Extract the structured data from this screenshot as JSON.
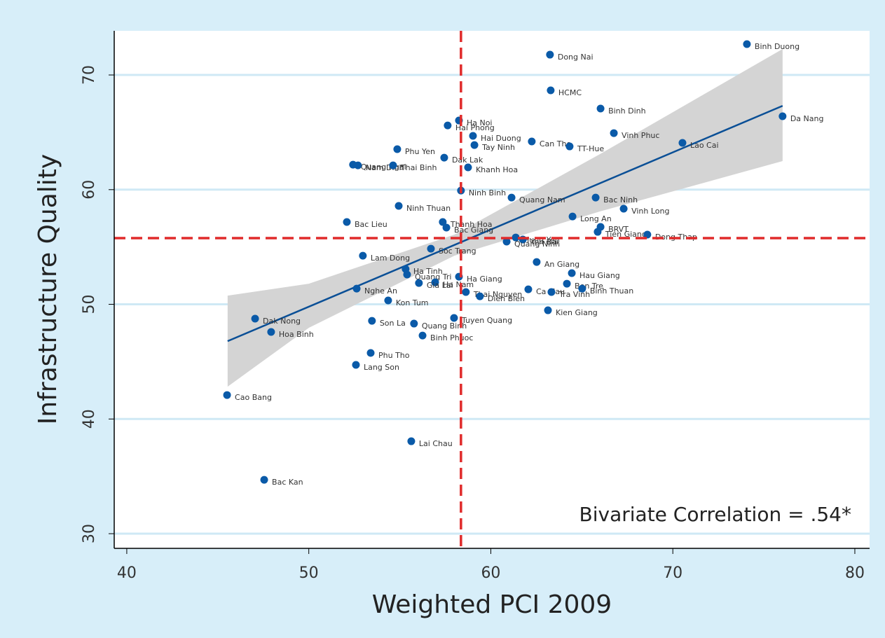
{
  "chart_data": {
    "type": "scatter",
    "xlabel": "Weighted PCI 2009",
    "ylabel": "Infrastructure Quality",
    "annotation": "Bivariate Correlation = .54*",
    "xlim": [
      39.31,
      80.81
    ],
    "ylim": [
      28.72,
      73.85
    ],
    "xticks": [
      40,
      50,
      60,
      70,
      80
    ],
    "yticks": [
      30,
      40,
      50,
      60,
      70
    ],
    "grid": true,
    "color": "#0a5aa8",
    "vline": 58.36,
    "hline": 55.77,
    "ref_color": "#e02b2b",
    "fit": {
      "x": [
        45.54,
        76.03
      ],
      "y": [
        46.79,
        67.31
      ],
      "color": "#0a4f96"
    },
    "ci": {
      "x": [
        45.54,
        50,
        58,
        66,
        76.03
      ],
      "lower": [
        42.82,
        47.95,
        54.24,
        58.1,
        62.49
      ],
      "upper": [
        50.76,
        51.8,
        56.08,
        63.1,
        72.26
      ],
      "color": "#d4d4d4"
    },
    "labels": [
      "Binh Duong",
      "Dong Nai",
      "HCMC",
      "Binh Dinh",
      "Da Nang",
      "Ha Noi",
      "Hai Phong",
      "Hai Duong",
      "Vinh Phuc",
      "Can Tho",
      "Lao Cai",
      "Tay Ninh",
      "TT-Hue",
      "Phu Yen",
      "Dak Lak",
      "Quang Ngai",
      "Nam Dinh",
      "Thai Binh",
      "Khanh Hoa",
      "Ninh Binh",
      "Quang Nam",
      "Bac Ninh",
      "Vinh Long",
      "Ninh Thuan",
      "Long An",
      "Thanh Hoa",
      "Bac Lieu",
      "BRVT",
      "Bac Giang",
      "Tien Giang",
      "Dong Thap",
      "Hung Yen",
      "Yen Bai",
      "Quang Ninh",
      "Soc Trang",
      "Lam Dong",
      "An Giang",
      "Ha Tinh",
      "Hau Giang",
      "Quang Tri",
      "Ha Giang",
      "Ben Tre",
      "Ha Nam",
      "Gia Lai",
      "Nghe An",
      "Binh Thuan",
      "Ca Mau",
      "Thai Nguyen",
      "Tra Vinh",
      "Dien Bien",
      "Kon Tum",
      "Kien Giang",
      "Tuyen Quang",
      "Dak Nong",
      "Son La",
      "Quang Binh",
      "Hoa Binh",
      "Binh Phuoc",
      "Phu Tho",
      "Lang Son",
      "Cao Bang",
      "Lai Chau",
      "Bac Kan"
    ],
    "x": [
      74.07,
      63.25,
      63.29,
      66.03,
      76.03,
      58.25,
      57.63,
      59.02,
      66.76,
      62.25,
      70.53,
      59.1,
      64.33,
      54.86,
      57.44,
      52.43,
      52.7,
      54.63,
      58.75,
      58.36,
      61.14,
      65.76,
      67.3,
      54.94,
      64.49,
      57.36,
      52.09,
      66.03,
      57.56,
      65.87,
      68.6,
      61.37,
      61.76,
      60.87,
      56.71,
      52.97,
      62.52,
      55.32,
      64.45,
      55.4,
      58.25,
      64.18,
      56.94,
      56.05,
      52.63,
      65.02,
      62.06,
      58.63,
      63.33,
      59.4,
      54.36,
      63.14,
      57.98,
      47.05,
      53.47,
      55.78,
      47.93,
      56.25,
      53.4,
      52.59,
      45.51,
      55.63,
      47.55
    ],
    "y": [
      72.69,
      71.77,
      68.66,
      67.07,
      66.4,
      66.03,
      65.6,
      64.69,
      64.93,
      64.2,
      64.08,
      63.89,
      63.77,
      63.53,
      62.79,
      62.18,
      62.12,
      62.12,
      61.94,
      59.92,
      59.31,
      59.31,
      58.34,
      58.58,
      57.66,
      57.18,
      57.18,
      56.75,
      56.69,
      56.32,
      56.08,
      55.83,
      55.65,
      55.47,
      54.85,
      54.24,
      53.69,
      53.08,
      52.72,
      52.6,
      52.41,
      51.8,
      51.92,
      51.86,
      51.37,
      51.37,
      51.31,
      51.07,
      51.07,
      50.7,
      50.34,
      49.48,
      48.81,
      48.75,
      48.56,
      48.32,
      47.59,
      47.28,
      45.76,
      44.72,
      42.09,
      38.06,
      34.7
    ]
  }
}
